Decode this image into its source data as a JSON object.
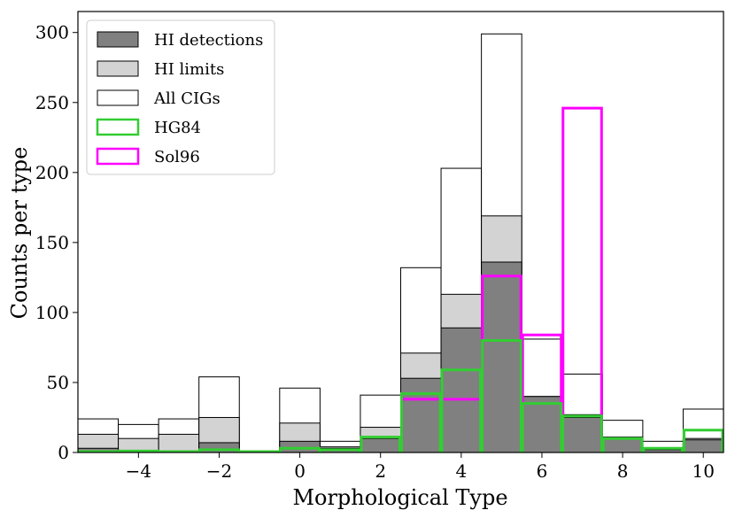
{
  "chart_data": {
    "type": "bar",
    "title": "",
    "xlabel": "Morphological Type",
    "ylabel": "Counts per type",
    "xlim": [
      -5.5,
      10.5
    ],
    "ylim": [
      0,
      315
    ],
    "xticks": [
      -4,
      -2,
      0,
      2,
      4,
      6,
      8,
      10
    ],
    "xtick_labels": [
      "−4",
      "−2",
      "0",
      "2",
      "4",
      "6",
      "8",
      "10"
    ],
    "yticks": [
      0,
      50,
      100,
      150,
      200,
      250,
      300
    ],
    "ytick_labels": [
      "0",
      "50",
      "100",
      "150",
      "200",
      "250",
      "300"
    ],
    "grid": false,
    "legend_position": "top-left",
    "categories": [
      -5,
      -4,
      -3,
      -2,
      -1,
      0,
      1,
      2,
      3,
      4,
      5,
      6,
      7,
      8,
      9,
      10
    ],
    "series": [
      {
        "name": "All CIGs",
        "style": "outline",
        "color": "#000000",
        "values": [
          24,
          20,
          24,
          54,
          0,
          46,
          8,
          41,
          132,
          203,
          299,
          81,
          56,
          23,
          8,
          31
        ]
      },
      {
        "name": "HI limits",
        "style": "filled",
        "color": "#d3d3d3",
        "values": [
          13,
          10,
          13,
          25,
          0,
          21,
          4,
          18,
          71,
          113,
          169,
          40,
          27,
          11,
          3,
          10
        ]
      },
      {
        "name": "HI detections",
        "style": "filled",
        "color": "#808080",
        "values": [
          3,
          1,
          1,
          7,
          0,
          8,
          3,
          10,
          53,
          89,
          136,
          40,
          25,
          10,
          2,
          9
        ]
      },
      {
        "name": "Sol96",
        "style": "step",
        "color": "#ff00ff",
        "values": [
          null,
          null,
          null,
          null,
          null,
          null,
          null,
          null,
          38,
          38,
          126,
          84,
          246,
          null,
          null,
          null
        ]
      },
      {
        "name": "HG84",
        "style": "step",
        "color": "#32cd32",
        "values": [
          0,
          1,
          0,
          2,
          0,
          3,
          2,
          11,
          42,
          59,
          80,
          35,
          26,
          10,
          3,
          16
        ]
      }
    ],
    "legend": [
      "HI detections",
      "HI limits",
      "All CIGs",
      "HG84",
      "Sol96"
    ]
  }
}
